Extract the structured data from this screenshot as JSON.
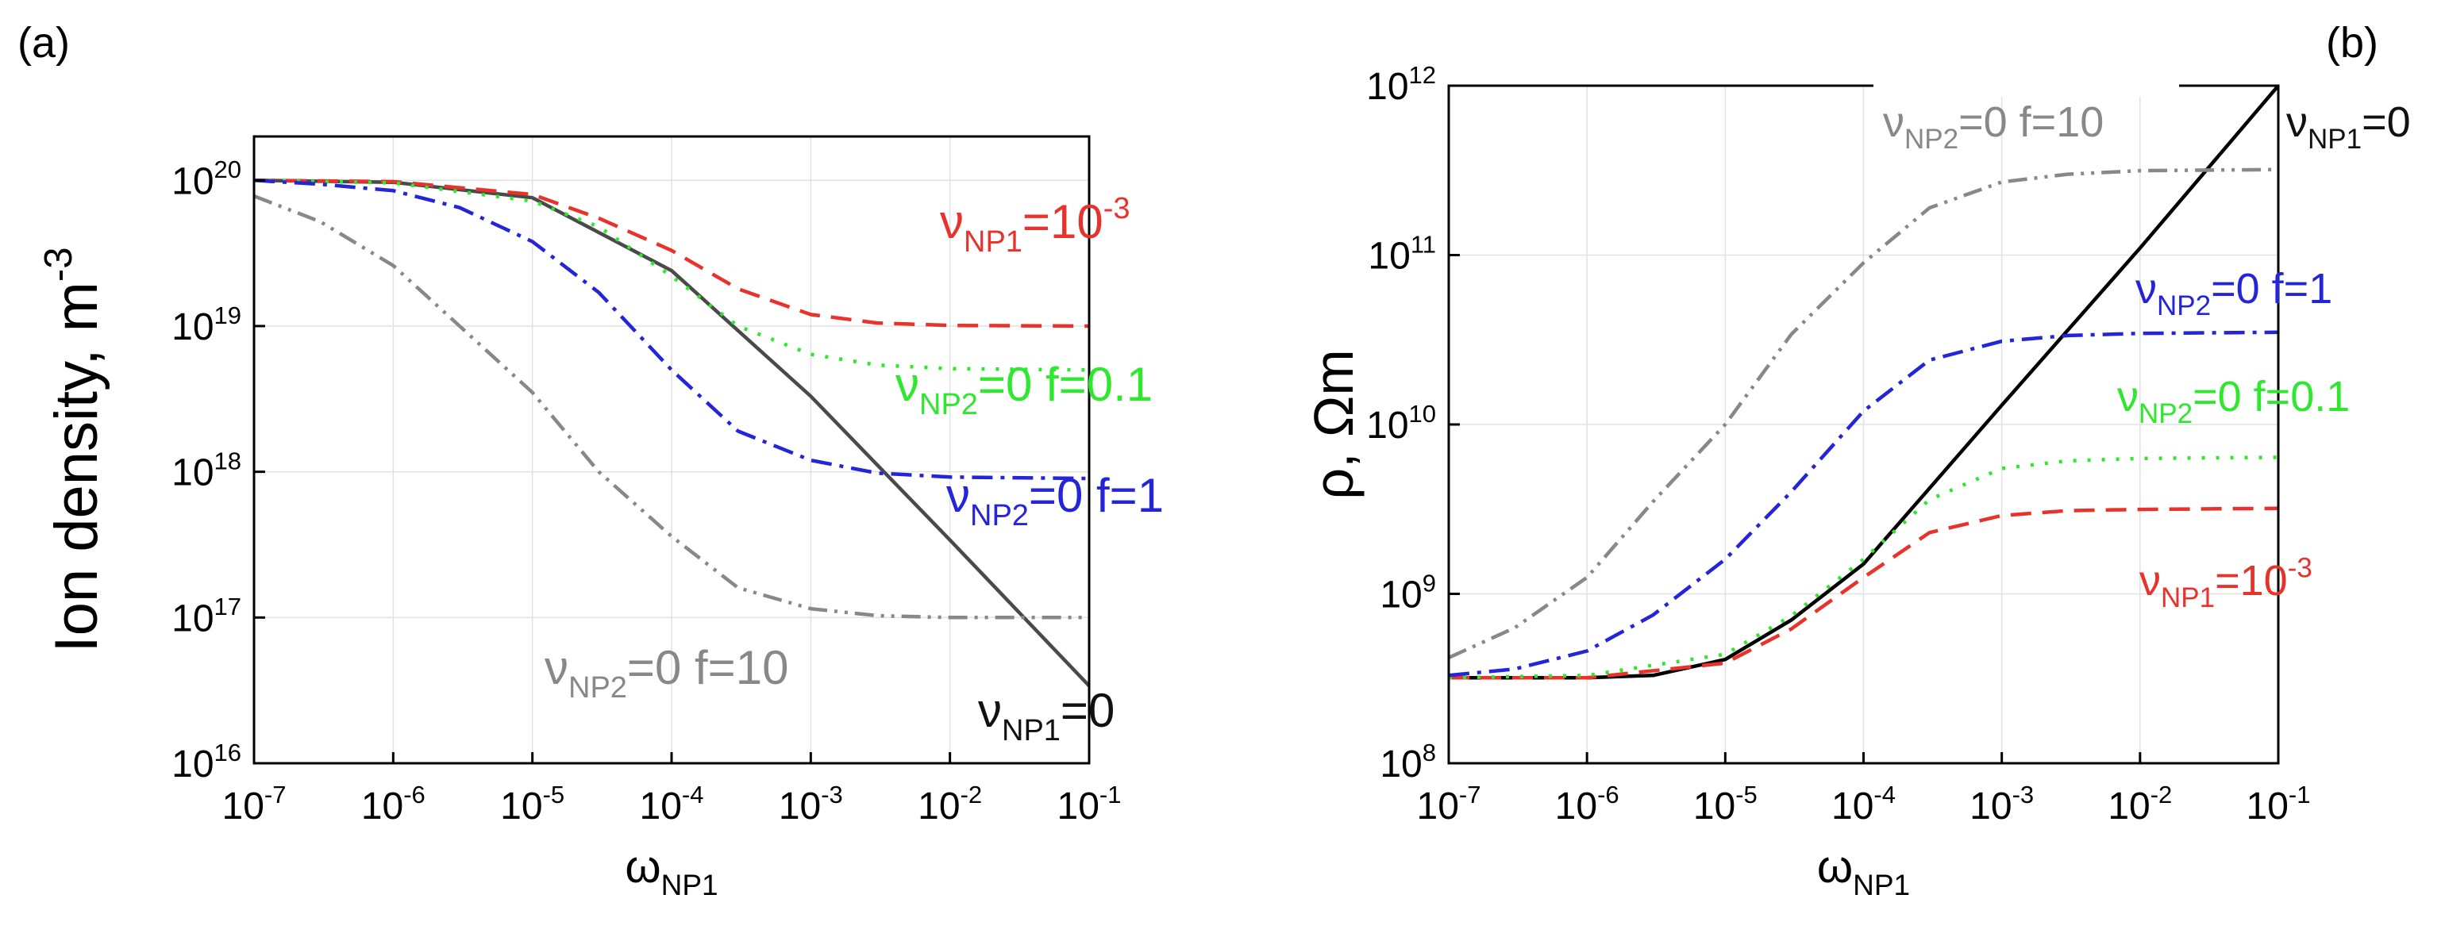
{
  "figure": {
    "panels": [
      {
        "label": "(a)"
      },
      {
        "label": "(b)"
      }
    ]
  },
  "chart_data": [
    {
      "type": "line",
      "panel": "(a)",
      "xscale": "log",
      "yscale": "log",
      "xlabel": "ω_NP1",
      "ylabel": "Ion density, m^-3",
      "xlim": [
        1e-07,
        0.1
      ],
      "ylim": [
        1e+16,
        2e+20
      ],
      "xticks": [
        1e-07,
        1e-06,
        1e-05,
        0.0001,
        0.001,
        0.01,
        0.1
      ],
      "xtick_labels": [
        "10^-7",
        "10^-6",
        "10^-5",
        "10^-4",
        "10^-3",
        "10^-2",
        "10^-1"
      ],
      "yticks": [
        1e+16,
        1e+17,
        1e+18,
        1e+19,
        1e+20
      ],
      "ytick_labels": [
        "10^16",
        "10^17",
        "10^18",
        "10^19",
        "10^20"
      ],
      "grid": true,
      "series": [
        {
          "name": "ν_NP1=0",
          "color": "#4a4a4a",
          "dash": "solid",
          "x": [
            1e-07,
            1e-06,
            1e-05,
            0.0001,
            0.001,
            0.01,
            0.1
          ],
          "y": [
            1e+20,
            9.7e+19,
            7.6e+19,
            2.4e+19,
            3.3e+18,
            3.4e+17,
            3.4e+16
          ]
        },
        {
          "name": "ν_NP1=10^-3",
          "color": "#e8322c",
          "dash": "dash",
          "x": [
            1e-07,
            1e-06,
            1e-05,
            3e-05,
            0.0001,
            0.0003,
            0.001,
            0.003,
            0.01,
            0.1
          ],
          "y": [
            1e+20,
            9.8e+19,
            8e+19,
            5.5e+19,
            3.3e+19,
            1.8e+19,
            1.2e+19,
            1.05e+19,
            1.01e+19,
            1e+19
          ]
        },
        {
          "name": "ν_NP2=0 f=0.1",
          "color": "#2ee82e",
          "dash": "dot",
          "x": [
            1e-07,
            1e-06,
            1e-05,
            3e-05,
            0.0001,
            0.0003,
            0.001,
            0.003,
            0.01,
            0.1
          ],
          "y": [
            1e+20,
            9.6e+19,
            7.2e+19,
            4.8e+19,
            2.2e+19,
            1e+19,
            6.4e+18,
            5.4e+18,
            5.1e+18,
            5e+18
          ]
        },
        {
          "name": "ν_NP2=0 f=1",
          "color": "#2424d8",
          "dash": "dashdot",
          "x": [
            1e-07,
            3e-07,
            1e-06,
            3e-06,
            1e-05,
            3e-05,
            0.0001,
            0.0003,
            0.001,
            0.003,
            0.01,
            0.1
          ],
          "y": [
            1e+20,
            9.4e+19,
            8.5e+19,
            6.5e+19,
            3.8e+19,
            1.7e+19,
            5e+18,
            1.9e+18,
            1.2e+18,
            9.8e+17,
            9.2e+17,
            9e+17
          ]
        },
        {
          "name": "ν_NP2=0 f=10",
          "color": "#888888",
          "dash": "dashdotdot",
          "x": [
            1e-07,
            3e-07,
            1e-06,
            3e-06,
            1e-05,
            3e-05,
            0.0001,
            0.0003,
            0.001,
            0.003,
            0.01,
            0.1
          ],
          "y": [
            7.8e+19,
            5.2e+19,
            2.6e+19,
            1e+19,
            3.5e+18,
            1e+18,
            3.6e+17,
            1.6e+17,
            1.15e+17,
            1.03e+17,
            1e+17,
            1e+17
          ]
        }
      ],
      "annotations": [
        {
          "base": "ν",
          "sub": "NP1",
          "rest": "=10",
          "sup": "-3",
          "color": "#e8322c"
        },
        {
          "base": "ν",
          "sub": "NP2",
          "rest": "=0 f=0.1",
          "sup": "",
          "color": "#2ee82e"
        },
        {
          "base": "ν",
          "sub": "NP2",
          "rest": "=0 f=1",
          "sup": "",
          "color": "#2424d8"
        },
        {
          "base": "ν",
          "sub": "NP2",
          "rest": "=0 f=10",
          "sup": "",
          "color": "#888888"
        },
        {
          "base": "ν",
          "sub": "NP1",
          "rest": "=0",
          "sup": "",
          "color": "#111111"
        }
      ]
    },
    {
      "type": "line",
      "panel": "(b)",
      "xscale": "log",
      "yscale": "log",
      "xlabel": "ω_NP1",
      "ylabel": "ρ, Ωm",
      "xlim": [
        1e-07,
        0.1
      ],
      "ylim": [
        100000000.0,
        1000000000000.0
      ],
      "xticks": [
        1e-07,
        1e-06,
        1e-05,
        0.0001,
        0.001,
        0.01,
        0.1
      ],
      "xtick_labels": [
        "10^-7",
        "10^-6",
        "10^-5",
        "10^-4",
        "10^-3",
        "10^-2",
        "10^-1"
      ],
      "yticks": [
        100000000.0,
        1000000000.0,
        10000000000.0,
        100000000000.0,
        1000000000000.0
      ],
      "ytick_labels": [
        "10^8",
        "10^9",
        "10^10",
        "10^11",
        "10^12"
      ],
      "grid": true,
      "series": [
        {
          "name": "ν_NP1=0",
          "color": "#000000",
          "dash": "solid",
          "x": [
            1e-07,
            1e-06,
            3e-06,
            1e-05,
            3e-05,
            0.0001,
            0.001,
            0.01,
            0.1
          ],
          "y": [
            320000000.0,
            320000000.0,
            330000000.0,
            410000000.0,
            700000000.0,
            1500000000.0,
            13000000000.0,
            110000000000.0,
            1000000000000.0
          ]
        },
        {
          "name": "ν_NP1=10^-3",
          "color": "#e8322c",
          "dash": "dash",
          "x": [
            1e-07,
            1e-06,
            1e-05,
            3e-05,
            0.0001,
            0.0003,
            0.001,
            0.003,
            0.01,
            0.1
          ],
          "y": [
            320000000.0,
            320000000.0,
            390000000.0,
            620000000.0,
            1250000000.0,
            2300000000.0,
            2900000000.0,
            3100000000.0,
            3150000000.0,
            3200000000.0
          ]
        },
        {
          "name": "ν_NP2=0 f=0.1",
          "color": "#2ee82e",
          "dash": "dot",
          "x": [
            1e-07,
            1e-06,
            1e-05,
            3e-05,
            0.0001,
            0.0003,
            0.001,
            0.003,
            0.01,
            0.1
          ],
          "y": [
            320000000.0,
            330000000.0,
            440000000.0,
            740000000.0,
            1600000000.0,
            3600000000.0,
            5500000000.0,
            6100000000.0,
            6300000000.0,
            6400000000.0
          ]
        },
        {
          "name": "ν_NP2=0 f=1",
          "color": "#2424d8",
          "dash": "dashdot",
          "x": [
            1e-07,
            3e-07,
            1e-06,
            3e-06,
            1e-05,
            3e-05,
            0.0001,
            0.0003,
            0.001,
            0.003,
            0.01,
            0.1
          ],
          "y": [
            330000000.0,
            360000000.0,
            460000000.0,
            750000000.0,
            1600000000.0,
            4000000000.0,
            12000000000.0,
            24000000000.0,
            31000000000.0,
            33500000000.0,
            34500000000.0,
            35000000000.0
          ]
        },
        {
          "name": "ν_NP2=0 f=10",
          "color": "#888888",
          "dash": "dashdotdot",
          "x": [
            1e-07,
            3e-07,
            1e-06,
            3e-06,
            1e-05,
            3e-05,
            0.0001,
            0.0003,
            0.001,
            0.003,
            0.01,
            0.1
          ],
          "y": [
            420000000.0,
            630000000.0,
            1250000000.0,
            3500000000.0,
            10000000000.0,
            34000000000.0,
            90000000000.0,
            190000000000.0,
            270000000000.0,
            300000000000.0,
            315000000000.0,
            320000000000.0
          ]
        }
      ],
      "annotations": [
        {
          "base": "ν",
          "sub": "NP2",
          "rest": "=0 f=10",
          "sup": "",
          "color": "#888888"
        },
        {
          "base": "ν",
          "sub": "NP1",
          "rest": "=0",
          "sup": "",
          "color": "#111111"
        },
        {
          "base": "ν",
          "sub": "NP2",
          "rest": "=0 f=1",
          "sup": "",
          "color": "#2424d8"
        },
        {
          "base": "ν",
          "sub": "NP2",
          "rest": "=0 f=0.1",
          "sup": "",
          "color": "#2ee82e"
        },
        {
          "base": "ν",
          "sub": "NP1",
          "rest": "=10",
          "sup": "-3",
          "color": "#e8322c"
        }
      ]
    }
  ]
}
